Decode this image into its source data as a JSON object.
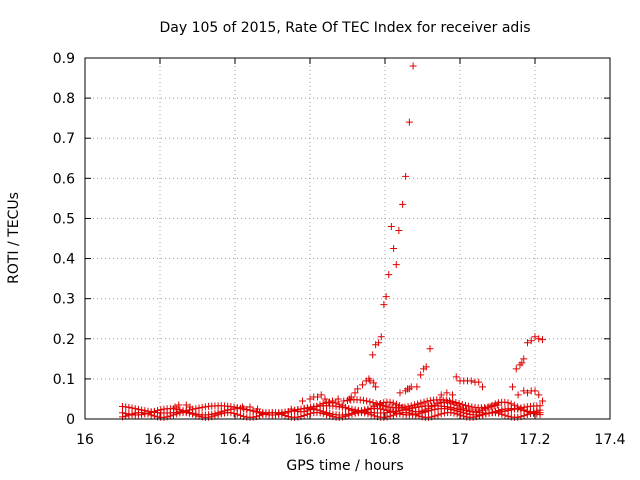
{
  "chart_data": {
    "type": "scatter",
    "title": "Day 105 of 2015, Rate Of TEC Index for receiver adis",
    "xlabel": "GPS time / hours",
    "ylabel": "ROTI / TECUs",
    "xlim": [
      16,
      17.4
    ],
    "ylim": [
      0,
      0.9
    ],
    "xticks": [
      "16",
      "16.2",
      "16.4",
      "16.6",
      "16.8",
      "17",
      "17.2",
      "17.4"
    ],
    "yticks": [
      "0",
      "0.1",
      "0.2",
      "0.3",
      "0.4",
      "0.5",
      "0.6",
      "0.7",
      "0.8",
      "0.9"
    ],
    "grid": true,
    "marker": "+",
    "color": "#e00000",
    "series": [
      {
        "points": [
          [
            16.767,
            0.16
          ],
          [
            16.775,
            0.185
          ],
          [
            16.783,
            0.19
          ],
          [
            16.79,
            0.205
          ],
          [
            16.797,
            0.285
          ],
          [
            16.803,
            0.305
          ],
          [
            16.81,
            0.36
          ],
          [
            16.817,
            0.48
          ],
          [
            16.823,
            0.425
          ],
          [
            16.83,
            0.385
          ],
          [
            16.837,
            0.47
          ],
          [
            16.847,
            0.535
          ],
          [
            16.855,
            0.605
          ],
          [
            16.865,
            0.74
          ],
          [
            16.875,
            0.88
          ],
          [
            16.885,
            0.08
          ],
          [
            16.895,
            0.11
          ],
          [
            16.903,
            0.125
          ],
          [
            16.91,
            0.13
          ],
          [
            16.92,
            0.175
          ],
          [
            16.74,
            0.085
          ],
          [
            16.75,
            0.095
          ],
          [
            16.757,
            0.1
          ],
          [
            16.76,
            0.095
          ],
          [
            16.77,
            0.09
          ],
          [
            16.775,
            0.08
          ],
          [
            16.727,
            0.075
          ],
          [
            16.72,
            0.065
          ],
          [
            16.71,
            0.055
          ],
          [
            16.705,
            0.05
          ],
          [
            16.84,
            0.065
          ],
          [
            16.855,
            0.07
          ],
          [
            16.86,
            0.075
          ],
          [
            16.865,
            0.075
          ],
          [
            16.87,
            0.08
          ],
          [
            16.99,
            0.105
          ],
          [
            17.0,
            0.095
          ],
          [
            17.01,
            0.095
          ],
          [
            17.02,
            0.095
          ],
          [
            17.03,
            0.095
          ],
          [
            17.04,
            0.092
          ],
          [
            17.05,
            0.092
          ],
          [
            17.06,
            0.08
          ],
          [
            16.95,
            0.06
          ],
          [
            16.965,
            0.065
          ],
          [
            16.98,
            0.06
          ],
          [
            17.14,
            0.08
          ],
          [
            17.15,
            0.125
          ],
          [
            17.16,
            0.135
          ],
          [
            17.165,
            0.14
          ],
          [
            17.17,
            0.15
          ],
          [
            17.18,
            0.19
          ],
          [
            17.19,
            0.195
          ],
          [
            17.2,
            0.205
          ],
          [
            17.21,
            0.2
          ],
          [
            17.22,
            0.198
          ],
          [
            17.155,
            0.06
          ],
          [
            17.17,
            0.07
          ],
          [
            17.18,
            0.065
          ],
          [
            17.19,
            0.07
          ],
          [
            17.2,
            0.07
          ],
          [
            17.21,
            0.06
          ],
          [
            17.22,
            0.045
          ],
          [
            16.62,
            0.055
          ],
          [
            16.63,
            0.06
          ],
          [
            16.64,
            0.05
          ],
          [
            16.65,
            0.04
          ],
          [
            16.66,
            0.045
          ],
          [
            16.675,
            0.05
          ],
          [
            16.69,
            0.045
          ],
          [
            16.58,
            0.045
          ],
          [
            16.6,
            0.05
          ],
          [
            16.61,
            0.055
          ],
          [
            16.25,
            0.035
          ],
          [
            16.27,
            0.035
          ],
          [
            16.28,
            0.03
          ],
          [
            16.24,
            0.03
          ],
          [
            16.42,
            0.03
          ],
          [
            16.44,
            0.03
          ],
          [
            16.46,
            0.025
          ]
        ]
      }
    ]
  }
}
